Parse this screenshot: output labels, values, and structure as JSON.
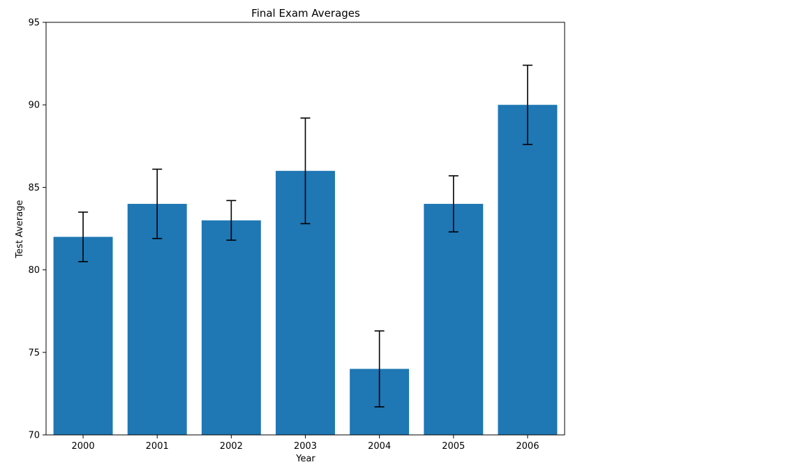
{
  "chart_data": {
    "type": "bar",
    "title": "Final Exam Averages",
    "xlabel": "Year",
    "ylabel": "Test Average",
    "categories": [
      "2000",
      "2001",
      "2002",
      "2003",
      "2004",
      "2005",
      "2006"
    ],
    "values": [
      82,
      84,
      83,
      86,
      74,
      84,
      90
    ],
    "errors": [
      1.5,
      2.1,
      1.2,
      3.2,
      2.3,
      1.7,
      2.4
    ],
    "ylim": [
      70,
      95
    ],
    "yticks": [
      70,
      75,
      80,
      85,
      90,
      95
    ],
    "bar_color": "#1f77b4",
    "error_color": "#000000",
    "grid": false
  }
}
